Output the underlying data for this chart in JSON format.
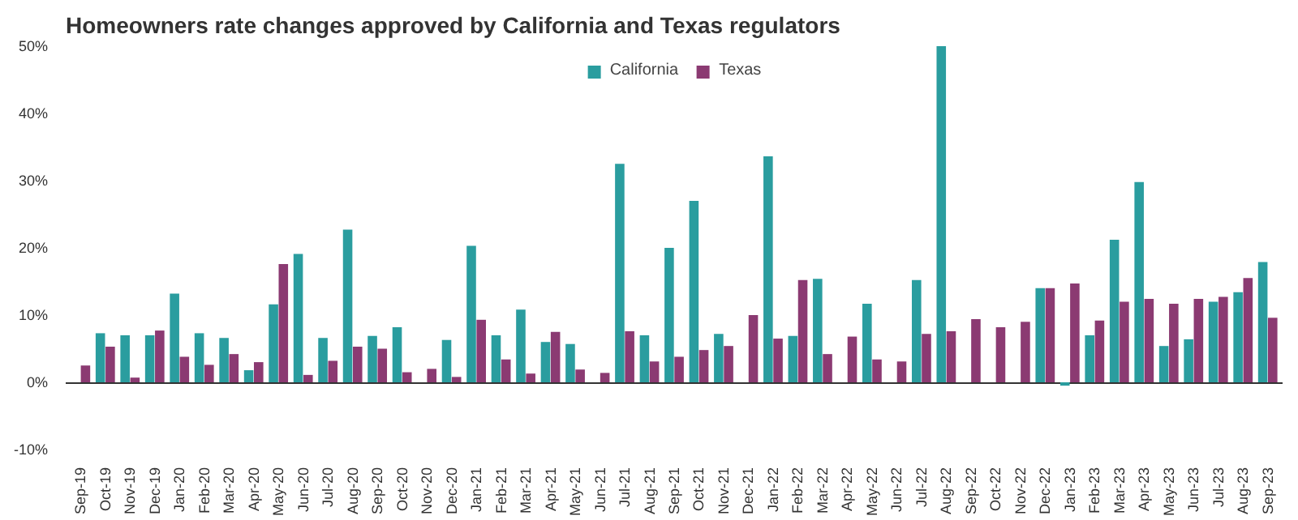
{
  "chart_data": {
    "type": "bar",
    "title": "Homeowners rate changes approved by California and Texas regulators",
    "categories": [
      "Sep-19",
      "Oct-19",
      "Nov-19",
      "Dec-19",
      "Jan-20",
      "Feb-20",
      "Mar-20",
      "Apr-20",
      "May-20",
      "Jun-20",
      "Jul-20",
      "Aug-20",
      "Sep-20",
      "Oct-20",
      "Nov-20",
      "Dec-20",
      "Jan-21",
      "Feb-21",
      "Mar-21",
      "Apr-21",
      "May-21",
      "Jun-21",
      "Jul-21",
      "Aug-21",
      "Sep-21",
      "Oct-21",
      "Nov-21",
      "Dec-21",
      "Jan-22",
      "Feb-22",
      "Mar-22",
      "Apr-22",
      "May-22",
      "Jun-22",
      "Jul-22",
      "Aug-22",
      "Sep-22",
      "Oct-22",
      "Nov-22",
      "Dec-22",
      "Jan-23",
      "Feb-23",
      "Mar-23",
      "Apr-23",
      "May-23",
      "Jun-23",
      "Jul-23",
      "Aug-23",
      "Sep-23"
    ],
    "series": [
      {
        "name": "California",
        "color": "#2a9d9f",
        "values": [
          null,
          7.3,
          7.0,
          7.0,
          13.2,
          7.3,
          6.6,
          1.8,
          11.6,
          19.1,
          6.6,
          22.7,
          6.9,
          8.2,
          null,
          6.3,
          20.3,
          7.0,
          10.8,
          6.0,
          5.7,
          null,
          32.5,
          7.0,
          20.0,
          27.0,
          7.2,
          null,
          33.6,
          6.9,
          15.4,
          null,
          11.7,
          null,
          15.2,
          50,
          null,
          null,
          null,
          14.0,
          -0.5,
          7.0,
          21.2,
          29.8,
          5.4,
          6.4,
          12.0,
          13.4,
          17.9
        ]
      },
      {
        "name": "Texas",
        "color": "#8b3a72",
        "values": [
          2.5,
          5.3,
          0.7,
          7.7,
          3.8,
          2.6,
          4.2,
          3.0,
          17.6,
          1.1,
          3.2,
          5.3,
          5.0,
          1.5,
          2.0,
          0.8,
          9.3,
          3.4,
          1.3,
          7.5,
          1.9,
          1.4,
          7.6,
          3.1,
          3.8,
          4.8,
          5.4,
          10.0,
          6.5,
          15.2,
          4.2,
          6.8,
          3.4,
          3.1,
          7.2,
          7.6,
          9.4,
          8.2,
          9.0,
          14.0,
          14.7,
          9.2,
          12.0,
          12.4,
          11.7,
          12.4,
          12.7,
          15.5,
          9.6
        ]
      }
    ],
    "ylim": [
      -10,
      50
    ],
    "yticks": [
      {
        "value": -10,
        "label": "-10%"
      },
      {
        "value": 0,
        "label": "0%"
      },
      {
        "value": 10,
        "label": "10%"
      },
      {
        "value": 20,
        "label": "20%"
      },
      {
        "value": 30,
        "label": "30%"
      },
      {
        "value": 40,
        "label": "40%"
      },
      {
        "value": 50,
        "label": "50%"
      }
    ],
    "legend": "top"
  }
}
